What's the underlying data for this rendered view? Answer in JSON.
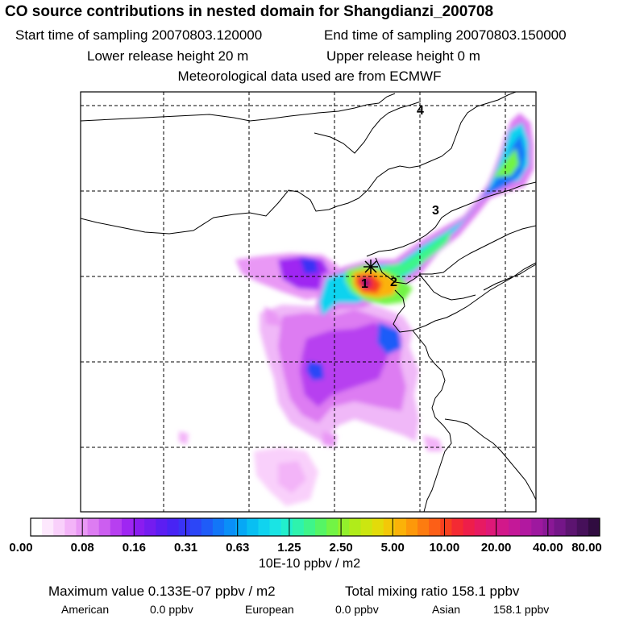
{
  "header": {
    "title": "CO  source contributions in nested domain for Shangdianzi_200708",
    "start_label": "Start time of sampling 20070803.120000",
    "end_label": "End time of sampling 20070803.150000",
    "lower_label": "Lower release height   20 m",
    "upper_label": "Upper release height    0 m",
    "met_label": "Meteorological data used are from ECMWF"
  },
  "map": {
    "point_labels": [
      "1",
      "2",
      "3",
      "4"
    ],
    "colors": {
      "coast": "#000000",
      "grid": "#000000",
      "frame": "#000000"
    },
    "receptor_marker": "plus-cross-icon"
  },
  "colorbar": {
    "tick_labels": [
      "0.00",
      "0.08",
      "0.16",
      "0.31",
      "0.63",
      "1.25",
      "2.50",
      "5.00",
      "10.00",
      "20.00",
      "40.00",
      "80.00"
    ],
    "colors": [
      "#ffffff",
      "#fde8fd",
      "#f9d0fb",
      "#f3b4f8",
      "#e998f5",
      "#dd7cf2",
      "#cc5ef0",
      "#b73ff0",
      "#9f26f2",
      "#8a1cf0",
      "#741cf0",
      "#5c1ef2",
      "#4824f4",
      "#3a33f5",
      "#2c46f7",
      "#1f5cf8",
      "#1276f8",
      "#0a8ff8",
      "#06a8f5",
      "#08bff2",
      "#10d3ef",
      "#1ae4e4",
      "#22efcc",
      "#2ef3ad",
      "#3ef58a",
      "#55f565",
      "#72f445",
      "#92f02c",
      "#b0ec1a",
      "#cce610",
      "#e3db0a",
      "#f3c808",
      "#fbb208",
      "#fd980a",
      "#fd7c10",
      "#fc5f17",
      "#f8411f",
      "#f42a33",
      "#ee1e4a",
      "#e71a62",
      "#de1878",
      "#d2188a",
      "#c41898",
      "#b218a0",
      "#9e189f",
      "#8a1896",
      "#741688",
      "#5c1470",
      "#46105a",
      "#300c40"
    ],
    "unit_label": "10E-10 ppbv / m2"
  },
  "footer": {
    "max_label": "Maximum value  0.133E-07 ppbv / m2",
    "total_label": "Total mixing ratio     158.1 ppbv",
    "american_label": "American",
    "american_value": "0.0 ppbv",
    "european_label": "European",
    "european_value": "0.0 ppbv",
    "asian_label": "Asian",
    "asian_value": "158.1 ppbv"
  }
}
